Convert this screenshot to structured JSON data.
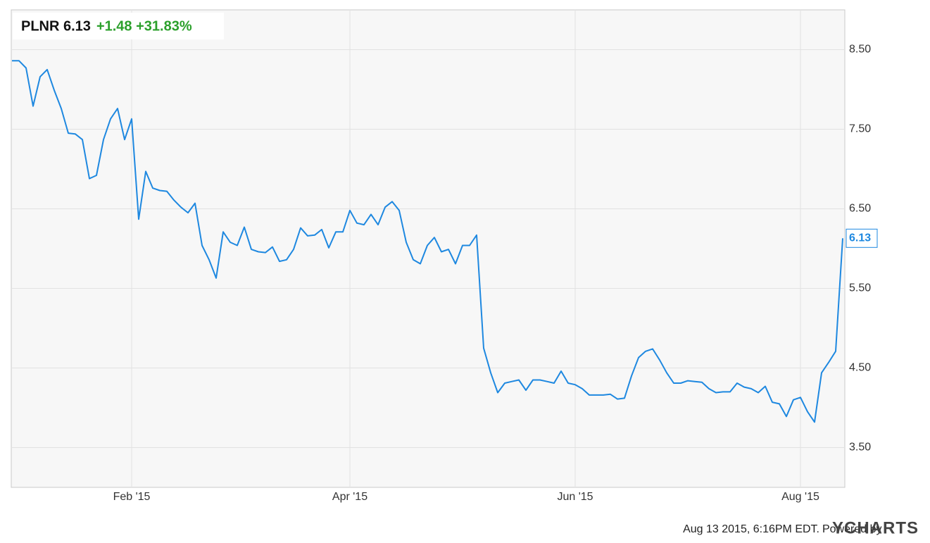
{
  "chart_data": {
    "type": "line",
    "title": "PLNR 6.13",
    "change": "+1.48 +31.83%",
    "footer": "Aug 13 2015, 6:16PM EDT.",
    "credit": "Powered by",
    "brand": "YCHARTS",
    "color": "#1e88e0",
    "grid": true,
    "categories": [
      null,
      null,
      null,
      null,
      null,
      null,
      null,
      null,
      null,
      null,
      null,
      null,
      null,
      null,
      null,
      null,
      null,
      "Feb '15",
      null,
      null,
      null,
      null,
      null,
      null,
      null,
      null,
      null,
      null,
      null,
      null,
      null,
      null,
      null,
      null,
      null,
      null,
      null,
      null,
      null,
      null,
      null,
      null,
      null,
      null,
      null,
      null,
      null,
      null,
      "Apr '15",
      null,
      null,
      null,
      null,
      null,
      null,
      null,
      null,
      null,
      null,
      null,
      null,
      null,
      null,
      null,
      null,
      null,
      null,
      null,
      null,
      null,
      null,
      null,
      null,
      null,
      null,
      null,
      null,
      null,
      null,
      null,
      "Jun '15",
      null,
      null,
      null,
      null,
      null,
      null,
      null,
      null,
      null,
      null,
      null,
      null,
      null,
      null,
      null,
      null,
      null,
      null,
      null,
      null,
      null,
      null,
      null,
      null,
      null,
      null,
      null,
      null,
      null,
      null,
      null,
      "Aug '15",
      null,
      null,
      null,
      null,
      null,
      null
    ],
    "values": [
      8.36,
      8.36,
      8.27,
      7.79,
      8.16,
      8.25,
      7.99,
      7.76,
      7.45,
      7.44,
      7.37,
      6.88,
      6.92,
      7.37,
      7.63,
      7.76,
      7.37,
      7.63,
      6.37,
      6.97,
      6.76,
      6.73,
      6.72,
      6.61,
      6.52,
      6.45,
      6.57,
      6.04,
      5.86,
      5.63,
      6.21,
      6.08,
      6.04,
      6.27,
      5.99,
      5.96,
      5.95,
      6.02,
      5.84,
      5.86,
      5.99,
      6.26,
      6.16,
      6.17,
      6.24,
      6.01,
      6.21,
      6.21,
      6.48,
      6.32,
      6.3,
      6.43,
      6.3,
      6.52,
      6.59,
      6.48,
      6.08,
      5.86,
      5.81,
      6.04,
      6.14,
      5.96,
      5.99,
      5.81,
      6.04,
      6.04,
      6.17,
      4.75,
      4.44,
      4.19,
      4.31,
      4.33,
      4.35,
      4.22,
      4.35,
      4.35,
      4.33,
      4.31,
      4.46,
      4.31,
      4.29,
      4.24,
      4.16,
      4.16,
      4.16,
      4.17,
      4.11,
      4.12,
      4.4,
      4.63,
      4.71,
      4.74,
      4.6,
      4.44,
      4.31,
      4.31,
      4.34,
      4.33,
      4.32,
      4.24,
      4.19,
      4.2,
      4.2,
      4.31,
      4.26,
      4.24,
      4.19,
      4.27,
      4.07,
      4.05,
      3.89,
      4.1,
      4.13,
      3.95,
      3.82,
      4.44,
      4.57,
      4.71,
      6.13
    ],
    "ylim": [
      3,
      9
    ],
    "yticks": [
      {
        "value": 3.5,
        "label": "3.50"
      },
      {
        "value": 4.5,
        "label": "4.50"
      },
      {
        "value": 5.5,
        "label": "5.50"
      },
      {
        "value": 6.5,
        "label": "6.50"
      },
      {
        "value": 7.5,
        "label": "7.50"
      },
      {
        "value": 8.5,
        "label": "8.50"
      }
    ]
  }
}
